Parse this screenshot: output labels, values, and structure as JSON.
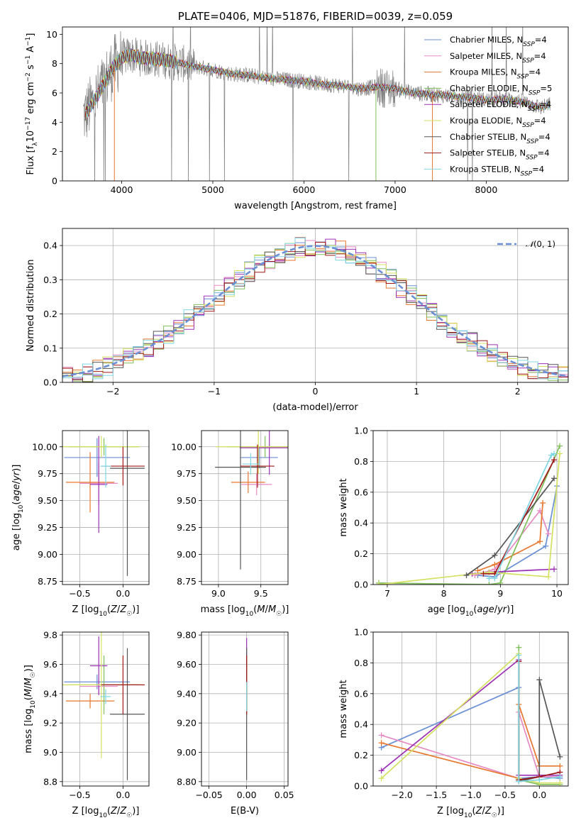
{
  "colors": {
    "chabrier_miles": "#6a8fd4",
    "salpeter_miles": "#e58ac3",
    "kroupa_miles": "#e8772e",
    "chabrier_elodie": "#7fbf5a",
    "salpeter_elodie": "#9b32b4",
    "kroupa_elodie": "#d4e060",
    "chabrier_stelib": "#555555",
    "salpeter_stelib": "#a01818",
    "kroupa_stelib": "#7fd6e3",
    "data": "#808080",
    "normal": "#6a8fd4",
    "grid": "#b0b0b0"
  },
  "series_names": [
    "Chabrier MILES, N_SSP=4",
    "Salpeter MILES, N_SSP=4",
    "Kroupa MILES, N_SSP=4",
    "Chabrier ELODIE, N_SSP=5",
    "Salpeter ELODIE, N_SSP=4",
    "Kroupa ELODIE, N_SSP=4",
    "Chabrier STELIB, N_SSP=4",
    "Salpeter STELIB, N_SSP=4",
    "Kroupa STELIB, N_SSP=4"
  ],
  "chart_data": [
    {
      "id": "spectrum",
      "type": "line",
      "title": "PLATE=0406, MJD=51876, FIBERID=0039, z=0.059",
      "xlabel": "wavelength [Angstrom, rest frame]",
      "ylabel": "Flux [f_λ 10^-17 erg cm^-2 s^-1 A^-1]",
      "xlim": [
        3350,
        8900
      ],
      "ylim": [
        0,
        10.5
      ],
      "xticks": [
        4000,
        5000,
        6000,
        7000,
        8000
      ],
      "yticks": [
        0,
        2,
        4,
        6,
        8,
        10
      ],
      "legend": [
        "Chabrier MILES, N",
        "Salpeter MILES, N",
        "Kroupa MILES, N",
        "Chabrier ELODIE, N",
        "Salpeter ELODIE, N",
        "Kroupa ELODIE, N",
        "Chabrier STELIB, N",
        "Salpeter STELIB, N",
        "Kroupa STELIB, N"
      ],
      "legend_sub": "SSP",
      "legend_vals": [
        "=4",
        "=4",
        "=4",
        "=5",
        "=4",
        "=4",
        "=4",
        "=4",
        "=4"
      ],
      "legend_position": "upper right",
      "continuum": {
        "x": [
          3600,
          3750,
          3900,
          4000,
          4100,
          4200,
          4400,
          4600,
          4800,
          5000,
          5200,
          5400,
          5600,
          5800,
          6000,
          6200,
          6400,
          6600,
          6800,
          7000,
          7200,
          7400,
          7600,
          7800,
          8000,
          8200,
          8400,
          8600,
          8700
        ],
        "y": [
          4.5,
          6.0,
          7.7,
          8.4,
          8.6,
          8.4,
          8.3,
          8.1,
          7.8,
          7.6,
          7.3,
          7.2,
          7.0,
          6.9,
          6.8,
          6.6,
          6.5,
          6.3,
          6.4,
          6.3,
          6.0,
          5.9,
          5.8,
          5.7,
          5.5,
          5.6,
          5.4,
          5.0,
          5.2
        ]
      }
    },
    {
      "id": "residuals",
      "type": "step",
      "xlabel": "(data-model)/error",
      "ylabel": "Normed distribution",
      "xlim": [
        -2.5,
        2.5
      ],
      "ylim": [
        0,
        0.45
      ],
      "xticks": [
        -2,
        -1,
        0,
        1,
        2
      ],
      "yticks": [
        0.0,
        0.1,
        0.2,
        0.3,
        0.4
      ],
      "legend": "N(0,1)",
      "legend_position": "upper right",
      "bin_width": 0.1
    },
    {
      "id": "age_vs_Z",
      "type": "errorbar",
      "xlabel": "Z [log10(Z/Z☉)]",
      "ylabel": "age  [log10(age/yr)]",
      "xlim": [
        -0.7,
        0.3
      ],
      "ylim": [
        8.72,
        10.15
      ],
      "xticks": [
        -0.5,
        0.0
      ],
      "yticks": [
        8.75,
        9.0,
        9.25,
        9.5,
        9.75,
        10.0
      ],
      "points": [
        {
          "x": -0.3,
          "xerr": 0.38,
          "y": 9.9,
          "yerr": 0.18
        },
        {
          "x": -0.28,
          "xerr": 0.22,
          "y": 9.66,
          "yerr": 0.2
        },
        {
          "x": -0.38,
          "xerr": 0.28,
          "y": 9.67,
          "yerr": 0.28
        },
        {
          "x": -0.22,
          "xerr": 0.4,
          "y": 10.0,
          "yerr": 0.08
        },
        {
          "x": -0.28,
          "xerr": 0.1,
          "y": 9.65,
          "yerr": 0.45
        },
        {
          "x": -0.25,
          "xerr": 0.45,
          "y": 10.0,
          "yerr": 0.1
        },
        {
          "x": 0.05,
          "xerr": 0.2,
          "y": 9.8,
          "yerr": 1.0
        },
        {
          "x": 0.0,
          "xerr": 0.25,
          "y": 9.82,
          "yerr": 0.18
        },
        {
          "x": -0.2,
          "xerr": 0.06,
          "y": 9.82,
          "yerr": 0.2
        }
      ]
    },
    {
      "id": "age_vs_mass",
      "type": "errorbar",
      "xlabel": "mass [log10(M/M☉)]",
      "ylabel": "",
      "xlim": [
        8.8,
        9.82
      ],
      "ylim": [
        8.72,
        10.15
      ],
      "xticks": [
        9.0,
        9.5
      ],
      "yticks": [
        8.75,
        9.0,
        9.25,
        9.5,
        9.75,
        10.0
      ],
      "points": [
        {
          "x": 9.48,
          "xerr": 0.22,
          "y": 9.9,
          "yerr": 0.1
        },
        {
          "x": 9.45,
          "xerr": 0.18,
          "y": 9.65,
          "yerr": 0.1
        },
        {
          "x": 9.35,
          "xerr": 0.2,
          "y": 9.67,
          "yerr": 0.1
        },
        {
          "x": 9.55,
          "xerr": 0.45,
          "y": 10.0,
          "yerr": 0.1
        },
        {
          "x": 9.6,
          "xerr": 0.35,
          "y": 9.99,
          "yerr": 0.25
        },
        {
          "x": 9.47,
          "xerr": 0.5,
          "y": 10.0,
          "yerr": 0.25
        },
        {
          "x": 9.26,
          "xerr": 0.3,
          "y": 9.81,
          "yerr": 0.95
        },
        {
          "x": 9.46,
          "xerr": 0.2,
          "y": 9.82,
          "yerr": 0.2
        },
        {
          "x": 9.38,
          "xerr": 0.1,
          "y": 9.84,
          "yerr": 0.1
        }
      ]
    },
    {
      "id": "weight_vs_age",
      "type": "line",
      "xlabel": "age  [log10(age/yr)]",
      "ylabel": "mass weight",
      "xlim": [
        6.75,
        10.2
      ],
      "ylim": [
        0,
        1.0
      ],
      "xticks": [
        7,
        8,
        9,
        10
      ],
      "yticks": [
        0.0,
        0.2,
        0.4,
        0.6,
        0.8,
        1.0
      ],
      "series": [
        {
          "x": [
            8.6,
            8.9,
            9.8,
            10.0
          ],
          "y": [
            0.06,
            0.05,
            0.25,
            0.64
          ]
        },
        {
          "x": [
            8.55,
            8.9,
            9.7,
            9.85
          ],
          "y": [
            0.06,
            0.1,
            0.48,
            0.33
          ]
        },
        {
          "x": [
            8.6,
            8.9,
            9.7,
            9.75
          ],
          "y": [
            0.09,
            0.13,
            0.28,
            0.53
          ]
        },
        {
          "x": [
            6.85,
            8.8,
            9.0,
            10.05
          ],
          "y": [
            0.01,
            0.0,
            0.01,
            0.9
          ]
        },
        {
          "x": [
            8.5,
            8.8,
            9.95
          ],
          "y": [
            0.07,
            0.08,
            0.1
          ]
        },
        {
          "x": [
            6.85,
            8.8,
            9.85,
            10.05
          ],
          "y": [
            0.0,
            0.08,
            0.05,
            0.85
          ]
        },
        {
          "x": [
            8.4,
            8.9,
            9.95
          ],
          "y": [
            0.06,
            0.19,
            0.69
          ]
        },
        {
          "x": [
            8.7,
            8.9,
            9.95
          ],
          "y": [
            0.07,
            0.07,
            0.81
          ]
        },
        {
          "x": [
            8.8,
            8.9,
            9.9,
            9.95
          ],
          "y": [
            0.04,
            0.04,
            0.84,
            0.85
          ]
        }
      ]
    },
    {
      "id": "mass_vs_Z",
      "type": "errorbar",
      "xlabel": "Z [log10(Z/Z☉)]",
      "ylabel": "mass [log10(M/M☉)]",
      "xlim": [
        -0.7,
        0.3
      ],
      "ylim": [
        8.77,
        9.82
      ],
      "xticks": [
        -0.5,
        0.0
      ],
      "yticks": [
        8.8,
        9.0,
        9.2,
        9.4,
        9.6,
        9.8
      ],
      "points": [
        {
          "x": -0.3,
          "xerr": 0.38,
          "y": 9.48,
          "yerr": 0.05
        },
        {
          "x": -0.28,
          "xerr": 0.22,
          "y": 9.45,
          "yerr": 0.05
        },
        {
          "x": -0.38,
          "xerr": 0.28,
          "y": 9.35,
          "yerr": 0.05
        },
        {
          "x": -0.22,
          "xerr": 0.4,
          "y": 9.46,
          "yerr": 0.2
        },
        {
          "x": -0.28,
          "xerr": 0.1,
          "y": 9.59,
          "yerr": 0.2
        },
        {
          "x": -0.25,
          "xerr": 0.45,
          "y": 9.46,
          "yerr": 0.5
        },
        {
          "x": 0.05,
          "xerr": 0.2,
          "y": 9.26,
          "yerr": 0.45
        },
        {
          "x": 0.0,
          "xerr": 0.25,
          "y": 9.46,
          "yerr": 0.2
        },
        {
          "x": -0.2,
          "xerr": 0.06,
          "y": 9.38,
          "yerr": 0.05
        }
      ]
    },
    {
      "id": "mass_vs_ebv",
      "type": "errorbar",
      "xlabel": "E(B-V)",
      "ylabel": "",
      "xlim": [
        -0.06,
        0.055
      ],
      "ylim": [
        8.77,
        9.82
      ],
      "xticks": [
        -0.05,
        0.0,
        0.05
      ],
      "yticks": [
        8.8,
        9.0,
        9.2,
        9.4,
        9.6,
        9.8
      ],
      "points": [
        {
          "x": 0.0,
          "xerr": 0.0,
          "y": 9.48,
          "yerr": 0.1
        },
        {
          "x": 0.0,
          "xerr": 0.0,
          "y": 9.45,
          "yerr": 0.1
        },
        {
          "x": 0.0,
          "xerr": 0.0,
          "y": 9.35,
          "yerr": 0.1
        },
        {
          "x": 0.0,
          "xerr": 0.0,
          "y": 9.46,
          "yerr": 0.2
        },
        {
          "x": 0.0,
          "xerr": 0.0,
          "y": 9.59,
          "yerr": 0.19
        },
        {
          "x": 0.0,
          "xerr": 0.0,
          "y": 9.46,
          "yerr": 0.2
        },
        {
          "x": 0.0,
          "xerr": 0.0,
          "y": 9.26,
          "yerr": 0.45
        },
        {
          "x": 0.0,
          "xerr": 0.0,
          "y": 9.46,
          "yerr": 0.2
        },
        {
          "x": 0.0,
          "xerr": 0.0,
          "y": 9.38,
          "yerr": 0.1
        }
      ]
    },
    {
      "id": "weight_vs_Z",
      "type": "line",
      "xlabel": "Z [log10(Z/Z☉)]",
      "ylabel": "mass weight",
      "xlim": [
        -2.42,
        0.42
      ],
      "ylim": [
        0,
        1.0
      ],
      "xticks": [
        -2.0,
        -1.5,
        -1.0,
        -0.5,
        0.0
      ],
      "yticks": [
        0.0,
        0.2,
        0.4,
        0.6,
        0.8,
        1.0
      ],
      "series": [
        {
          "x": [
            -2.3,
            -0.3,
            -0.3,
            0.0,
            0.3
          ],
          "y": [
            0.25,
            0.64,
            0.05,
            0.06,
            0.05
          ]
        },
        {
          "x": [
            -2.3,
            -0.3,
            -0.3,
            0.0,
            0.3
          ],
          "y": [
            0.33,
            0.05,
            0.48,
            0.06,
            0.06
          ]
        },
        {
          "x": [
            -2.3,
            -0.3,
            -0.3,
            0.0,
            0.3
          ],
          "y": [
            0.28,
            0.05,
            0.53,
            0.13,
            0.13
          ]
        },
        {
          "x": [
            -0.3,
            -0.3,
            0.0,
            0.3
          ],
          "y": [
            0.9,
            0.04,
            0.01,
            0.01
          ]
        },
        {
          "x": [
            -2.3,
            -0.3,
            -0.3,
            0.0,
            0.3
          ],
          "y": [
            0.1,
            0.82,
            0.07,
            0.07,
            0.07
          ]
        },
        {
          "x": [
            -2.3,
            -0.3,
            -0.3,
            0.0,
            0.3
          ],
          "y": [
            0.05,
            0.86,
            0.05,
            0.02,
            0.02
          ]
        },
        {
          "x": [
            -0.3,
            -0.3,
            0.0,
            0.0,
            0.3
          ],
          "y": [
            0.81,
            0.03,
            0.06,
            0.69,
            0.19
          ]
        },
        {
          "x": [
            -0.3,
            -0.3,
            0.0,
            0.3
          ],
          "y": [
            0.81,
            0.04,
            0.06,
            0.09
          ]
        },
        {
          "x": [
            -0.3,
            -0.3,
            0.0,
            0.3
          ],
          "y": [
            0.85,
            0.03,
            0.04,
            0.06
          ]
        }
      ]
    }
  ]
}
